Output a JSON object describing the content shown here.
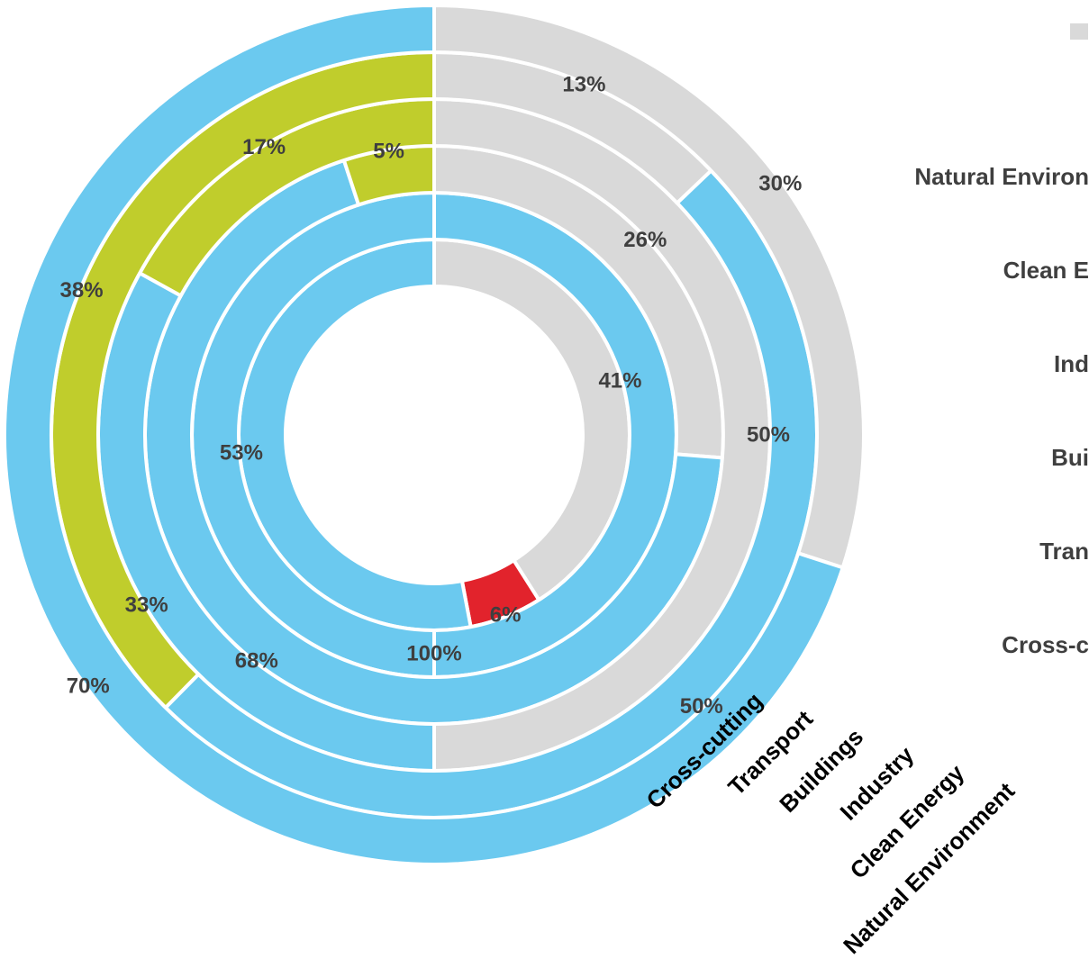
{
  "chart_data": {
    "type": "pie",
    "subtype": "multi-level doughnut",
    "title": "",
    "colors": {
      "gray": "#d9d9d9",
      "blue": "#6bc9ef",
      "green": "#c0cd2c",
      "red": "#e2232c"
    },
    "rings_inner_to_outer": [
      {
        "name": "Cross-cutting",
        "segments": [
          {
            "color": "gray",
            "value": 41,
            "label": "41%"
          },
          {
            "color": "red",
            "value": 6,
            "label": "6%"
          },
          {
            "color": "blue",
            "value": 53,
            "label": "53%"
          }
        ]
      },
      {
        "name": "Transport",
        "segments": [
          {
            "color": "blue",
            "value": 100,
            "label": "100%"
          }
        ]
      },
      {
        "name": "Buildings",
        "segments": [
          {
            "color": "gray",
            "value": 26,
            "label": "26%"
          },
          {
            "color": "blue",
            "value": 68,
            "label": "68%"
          },
          {
            "color": "green",
            "value": 5,
            "label": "5%"
          }
        ]
      },
      {
        "name": "Industry",
        "segments": [
          {
            "color": "gray",
            "value": 50,
            "label": "50%"
          },
          {
            "color": "blue",
            "value": 33,
            "label": "33%"
          },
          {
            "color": "green",
            "value": 17,
            "label": "17%"
          }
        ]
      },
      {
        "name": "Clean Energy",
        "segments": [
          {
            "color": "gray",
            "value": 13,
            "label": "13%"
          },
          {
            "color": "blue",
            "value": 50,
            "label": "50%"
          },
          {
            "color": "green",
            "value": 38,
            "label": "38%"
          }
        ]
      },
      {
        "name": "Natural Environment",
        "segments": [
          {
            "color": "gray",
            "value": 30,
            "label": "30%"
          },
          {
            "color": "blue",
            "value": 70,
            "label": "70%"
          }
        ]
      }
    ],
    "legend": {
      "placement": "right",
      "marker_color": "gray",
      "entries": [
        "Natural Environ",
        "Clean E",
        "Ind",
        "Bui",
        "Tran",
        "Cross-c"
      ]
    }
  }
}
